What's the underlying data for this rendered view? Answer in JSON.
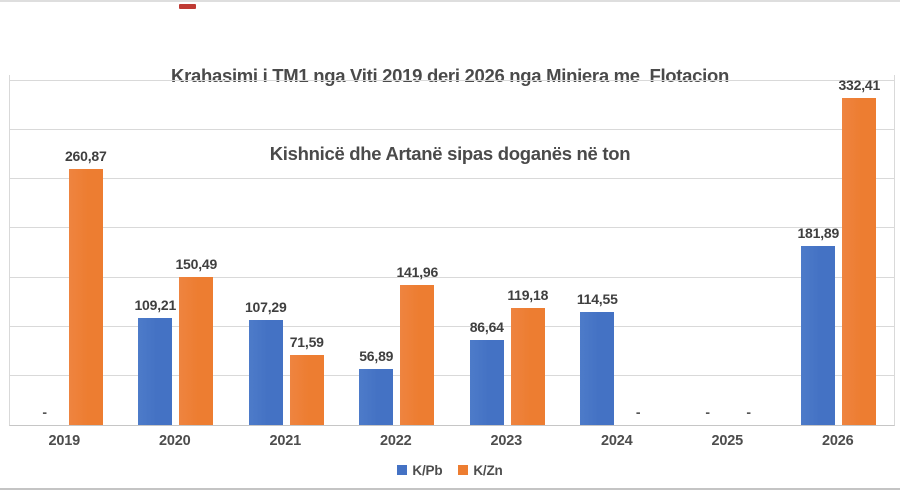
{
  "title": {
    "line1": "Krahasimi i TM1 nga Viti 2019 deri 2026 nga Miniera me  Flotacion",
    "line2": "Kishnicë dhe Artanë sipas doganës në ton"
  },
  "chart_data": {
    "type": "bar",
    "title": "Krahasimi i TM1 nga Viti 2019 deri 2026 nga Miniera me Flotacion Kishnicë dhe Artanë sipas doganës në ton",
    "categories": [
      "2019",
      "2020",
      "2021",
      "2022",
      "2023",
      "2024",
      "2025",
      "2026"
    ],
    "series": [
      {
        "name": "K/Pb",
        "color": "#4472C4",
        "values": [
          null,
          109.21,
          107.29,
          56.89,
          86.64,
          114.55,
          null,
          181.89
        ],
        "labels": [
          "-",
          "109,21",
          "107,29",
          "56,89",
          "86,64",
          "114,55",
          "-",
          "181,89"
        ]
      },
      {
        "name": "K/Zn",
        "color": "#ED7D31",
        "values": [
          260.87,
          150.49,
          71.59,
          141.96,
          119.18,
          null,
          null,
          332.41
        ],
        "labels": [
          "260,87",
          "150,49",
          "71,59",
          "141,96",
          "119,18",
          "-",
          "-",
          "332,41"
        ]
      }
    ],
    "xlabel": "",
    "ylabel": "",
    "ylim": [
      0,
      356
    ],
    "gridline_step": 50,
    "grid": true,
    "legend_position": "bottom",
    "decimal_separator": ",",
    "missing_value_marker": "-"
  },
  "legend": {
    "items": [
      {
        "label": "K/Pb",
        "color": "#4472C4"
      },
      {
        "label": "K/Zn",
        "color": "#ED7D31"
      }
    ]
  },
  "colors": {
    "bar_blue": "#4472C4",
    "bar_orange": "#ED7D31",
    "title_text": "#4a4a4a",
    "gridline": "#d9d9d9",
    "axis_line": "#c6c6c6",
    "red_mark": "#bf3a34"
  }
}
